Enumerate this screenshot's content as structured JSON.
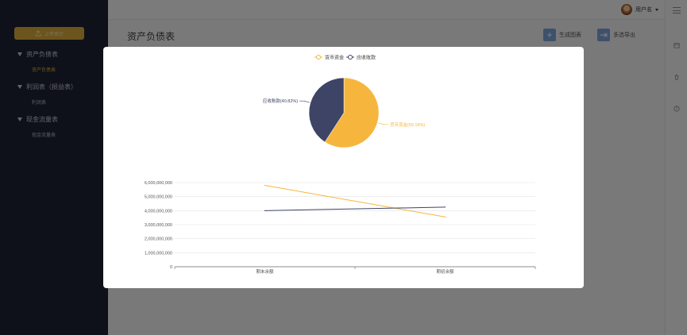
{
  "sidebar": {
    "upload_label": "上传审计",
    "groups": [
      {
        "label": "资产负债表",
        "items": [
          {
            "label": "资产负债表",
            "active": true
          }
        ]
      },
      {
        "label": "利润表（损益表）",
        "items": [
          {
            "label": "利润表",
            "active": false
          }
        ]
      },
      {
        "label": "现金流量表",
        "items": [
          {
            "label": "现金流量表",
            "active": false
          }
        ]
      }
    ]
  },
  "header": {
    "username": "用户名"
  },
  "page": {
    "title": "资产负债表",
    "actions": {
      "generate_chart": "生成图表",
      "export": "多选导出"
    }
  },
  "colors": {
    "series1": "#f6b63d",
    "series2": "#3d4466",
    "upload": "#d9a93a",
    "sidebar": "#1d2233"
  },
  "chart_data": [
    {
      "type": "pie",
      "legend": [
        "货币资金",
        "应收账款"
      ],
      "legend_position": "top-center",
      "slices": [
        {
          "name": "货币资金",
          "value": 59.18,
          "label": "货币资金(59.18%)"
        },
        {
          "name": "应收账款",
          "value": 40.82,
          "label": "应收账款(40.82%)"
        }
      ]
    },
    {
      "type": "line",
      "categories": [
        "期末余额",
        "期初余额"
      ],
      "ylim": [
        0,
        6000000000
      ],
      "yticks": [
        "0",
        "1,000,000,000",
        "2,000,000,000",
        "3,000,000,000",
        "4,000,000,000",
        "5,000,000,000",
        "6,000,000,000"
      ],
      "series": [
        {
          "name": "货币资金",
          "values": [
            5800000000,
            3550000000
          ]
        },
        {
          "name": "应收账款",
          "values": [
            4000000000,
            4250000000
          ]
        }
      ],
      "grid": true
    }
  ]
}
